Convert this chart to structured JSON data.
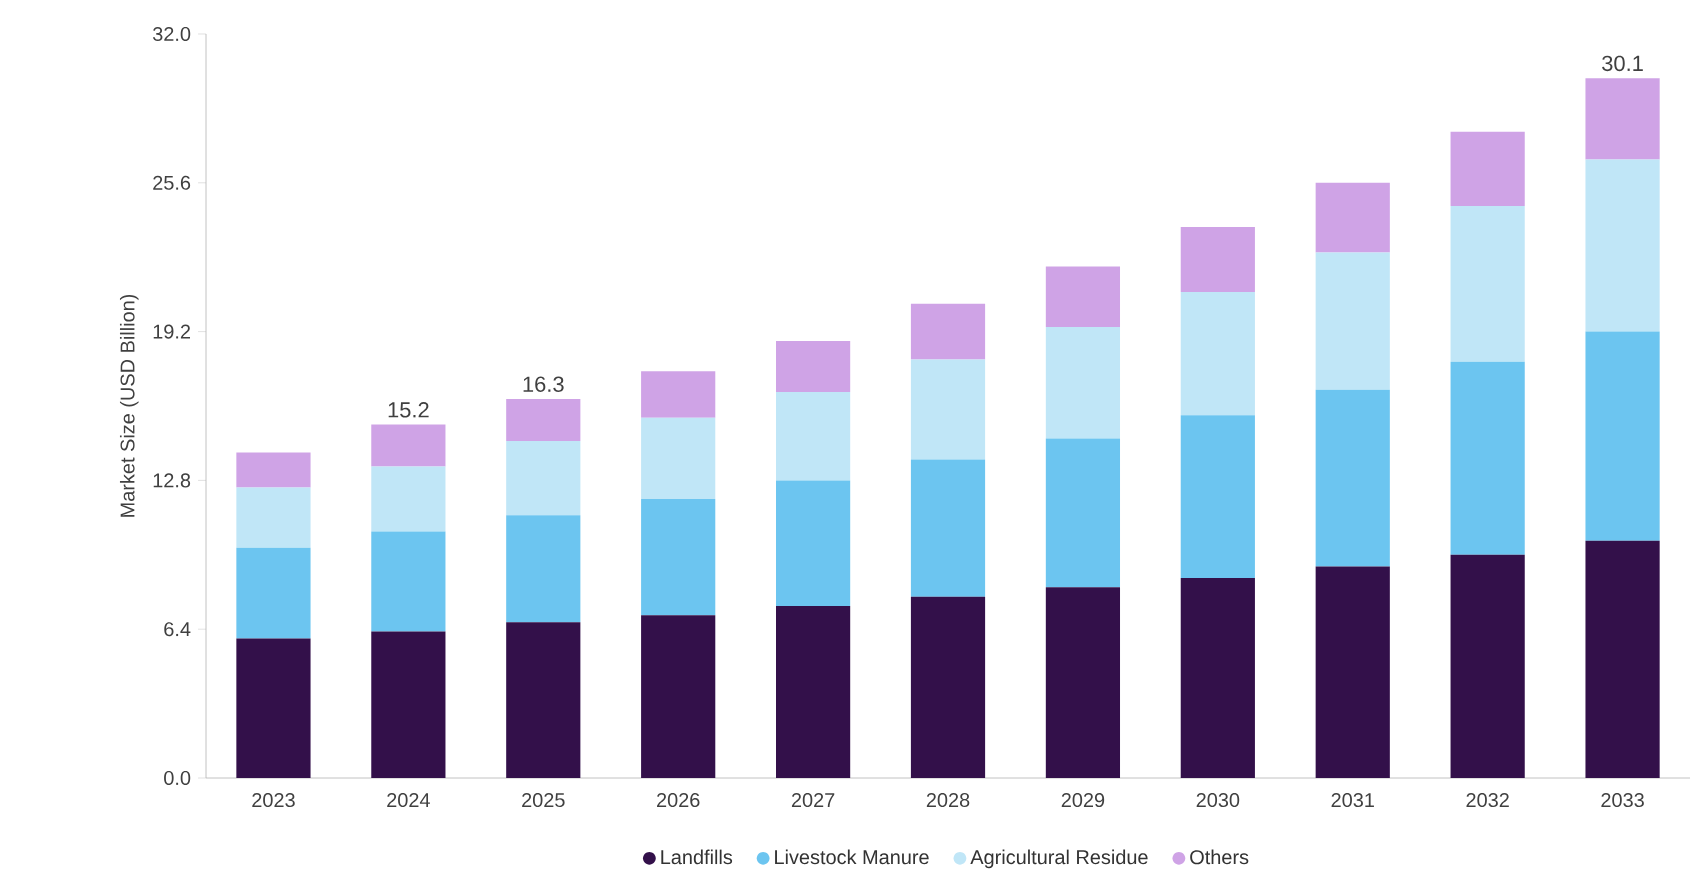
{
  "chart_data": {
    "type": "bar",
    "stacked": true,
    "ylabel": "Market Size (USD Billion)",
    "categories": [
      "2023",
      "2024",
      "2025",
      "2026",
      "2027",
      "2028",
      "2029",
      "2030",
      "2031",
      "2032",
      "2033"
    ],
    "series": [
      {
        "name": "Landfills",
        "color": "#33104a",
        "values": [
          6.0,
          6.3,
          6.7,
          7.0,
          7.4,
          7.8,
          8.2,
          8.6,
          9.1,
          9.6,
          10.2
        ]
      },
      {
        "name": "Livestock Manure",
        "color": "#6cc5f0",
        "values": [
          3.9,
          4.3,
          4.6,
          5.0,
          5.4,
          5.9,
          6.4,
          7.0,
          7.6,
          8.3,
          9.0
        ]
      },
      {
        "name": "Agricultural Residue",
        "color": "#c0e6f7",
        "values": [
          2.6,
          2.8,
          3.2,
          3.5,
          3.8,
          4.3,
          4.8,
          5.3,
          5.9,
          6.7,
          7.4
        ]
      },
      {
        "name": "Others",
        "color": "#cfa3e6",
        "values": [
          1.5,
          1.8,
          1.8,
          2.0,
          2.2,
          2.4,
          2.6,
          2.8,
          3.0,
          3.2,
          3.5
        ]
      }
    ],
    "totals": [
      null,
      "15.2",
      "16.3",
      null,
      null,
      null,
      null,
      null,
      null,
      null,
      "30.1"
    ],
    "ylim": [
      0,
      32
    ],
    "yticks": [
      {
        "value": 0,
        "label": "0.0"
      },
      {
        "value": 6.4,
        "label": "6.4"
      },
      {
        "value": 12.8,
        "label": "12.8"
      },
      {
        "value": 19.2,
        "label": "19.2"
      },
      {
        "value": 25.6,
        "label": "25.6"
      },
      {
        "value": 32,
        "label": "32.0"
      }
    ],
    "legend": "bottom",
    "marker": "circle",
    "grid": false
  }
}
